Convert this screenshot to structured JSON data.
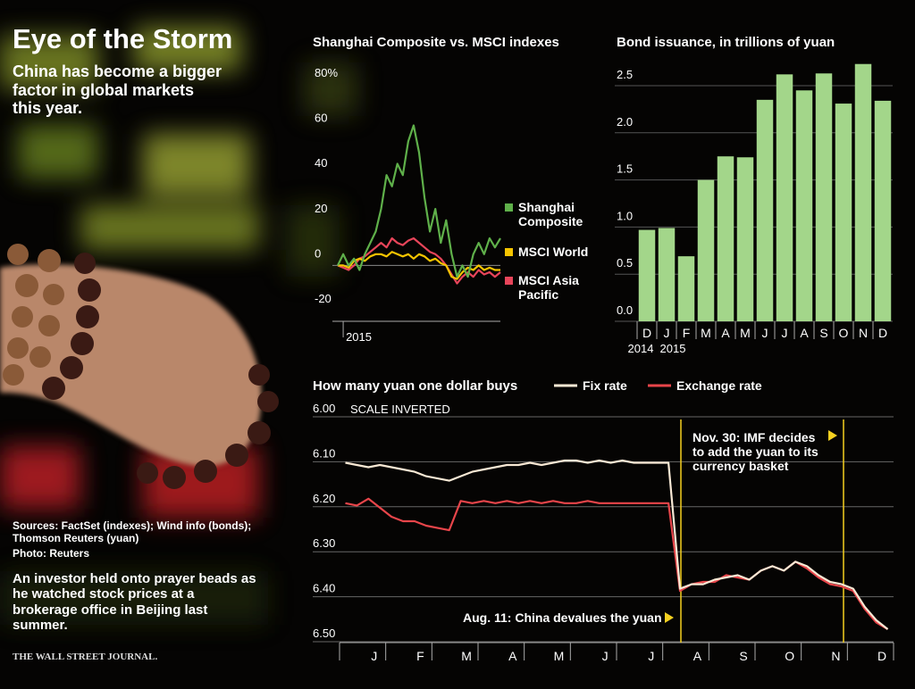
{
  "header": {
    "title": "Eye of the Storm",
    "subtitle": "China has become a bigger factor in global markets this year.",
    "sources": "Sources: FactSet (indexes); Wind info (bonds); Thomson Reuters (yuan)",
    "photo_credit": "Photo: Reuters",
    "caption": "An investor held onto prayer beads as he watched stock prices at a brokerage office in Beijing last summer.",
    "publisher": "THE WALL STREET JOURNAL."
  },
  "chart_data": [
    {
      "type": "line",
      "title": "Shanghai Composite vs. MSCI indexes",
      "categories": [
        null,
        "2015",
        null,
        null,
        null,
        null,
        null,
        null,
        null,
        null,
        null,
        null,
        null,
        null,
        null,
        null,
        null,
        null,
        null,
        null,
        null,
        null,
        null,
        null,
        null,
        null,
        null,
        null,
        null,
        null,
        null
      ],
      "series": [
        {
          "name": "Shanghai Composite",
          "color": "#5fb04a",
          "values": [
            0,
            5,
            0,
            3,
            -2,
            5,
            10,
            15,
            25,
            40,
            35,
            45,
            40,
            55,
            62,
            50,
            30,
            15,
            25,
            10,
            20,
            5,
            -5,
            0,
            -5,
            5,
            10,
            5,
            12,
            8,
            12
          ]
        },
        {
          "name": "MSCI World",
          "color": "#f5c400",
          "values": [
            0,
            0,
            -1,
            2,
            3,
            2,
            4,
            5,
            5,
            4,
            6,
            5,
            4,
            5,
            3,
            5,
            4,
            2,
            3,
            1,
            0,
            -5,
            -6,
            -3,
            -1,
            -2,
            0,
            -2,
            -1,
            -2,
            -2
          ]
        },
        {
          "name": "MSCI Asia Pacific",
          "color": "#e8455a",
          "values": [
            0,
            -1,
            -2,
            0,
            3,
            4,
            6,
            8,
            10,
            8,
            12,
            10,
            9,
            11,
            12,
            10,
            8,
            6,
            5,
            3,
            0,
            -4,
            -8,
            -5,
            -3,
            -5,
            -2,
            -4,
            -3,
            -5,
            -3
          ]
        }
      ],
      "ylim": [
        -20,
        80
      ],
      "yticks": [
        -20,
        0,
        20,
        40,
        60,
        {
          "value": 80,
          "label": "80%"
        }
      ]
    },
    {
      "type": "bar",
      "title": "Bond issuance, in trillions of yuan",
      "categories": [
        "D",
        "J",
        "F",
        "M",
        "A",
        "M",
        "J",
        "J",
        "A",
        "S",
        "O",
        "N",
        "D"
      ],
      "x_sublabels": [
        "2014",
        "2015",
        null,
        null,
        null,
        null,
        null,
        null,
        null,
        null,
        null,
        null,
        null
      ],
      "values": [
        0.97,
        0.99,
        0.69,
        1.5,
        1.75,
        1.74,
        2.35,
        2.62,
        2.45,
        2.63,
        2.31,
        2.73,
        2.34
      ],
      "color": "#a3d68a",
      "ylim": [
        0,
        2.75
      ],
      "yticks": [
        {
          "value": 0,
          "label": "0.0"
        },
        0.5,
        {
          "value": 1,
          "label": "1.0"
        },
        1.5,
        {
          "value": 2,
          "label": "2.0"
        },
        2.5
      ],
      "grid": true
    },
    {
      "type": "line",
      "title": "How many yuan one dollar buys",
      "subtitle": "SCALE INVERTED",
      "inverted": true,
      "categories": [
        null,
        "J",
        null,
        null,
        null,
        "F",
        null,
        null,
        null,
        "M",
        null,
        null,
        null,
        "A",
        null,
        null,
        null,
        "M",
        null,
        null,
        null,
        "J",
        null,
        null,
        null,
        "J",
        null,
        null,
        null,
        "A",
        null,
        null,
        null,
        "S",
        null,
        null,
        null,
        "O",
        null,
        null,
        null,
        "N",
        null,
        null,
        null,
        "D",
        null,
        null
      ],
      "series": [
        {
          "name": "Fix rate",
          "color": "#f7e8d4",
          "values": [
            6.12,
            6.125,
            6.13,
            6.125,
            6.13,
            6.135,
            6.14,
            6.15,
            6.155,
            6.16,
            6.15,
            6.14,
            6.135,
            6.13,
            6.125,
            6.125,
            6.12,
            6.125,
            6.12,
            6.115,
            6.115,
            6.12,
            6.115,
            6.12,
            6.115,
            6.12,
            6.12,
            6.12,
            6.12,
            6.4,
            6.39,
            6.39,
            6.38,
            6.375,
            6.37,
            6.38,
            6.36,
            6.35,
            6.36,
            6.34,
            6.35,
            6.37,
            6.385,
            6.39,
            6.4,
            6.44,
            6.47,
            6.49
          ]
        },
        {
          "name": "Exchange rate",
          "color": "#e8454a",
          "values": [
            6.21,
            6.215,
            6.2,
            6.22,
            6.24,
            6.25,
            6.25,
            6.26,
            6.265,
            6.27,
            6.205,
            6.21,
            6.205,
            6.21,
            6.205,
            6.21,
            6.205,
            6.21,
            6.205,
            6.21,
            6.21,
            6.205,
            6.21,
            6.21,
            6.21,
            6.21,
            6.21,
            6.21,
            6.21,
            6.405,
            6.39,
            6.385,
            6.385,
            6.37,
            6.375,
            6.38,
            6.36,
            6.35,
            6.36,
            6.34,
            6.355,
            6.375,
            6.39,
            6.395,
            6.405,
            6.445,
            6.475,
            6.49
          ]
        }
      ],
      "ylim": [
        6,
        6.5
      ],
      "yticks": [
        {
          "value": 6,
          "label": "6.00"
        },
        {
          "value": 6.1,
          "label": "6.10"
        },
        {
          "value": 6.2,
          "label": "6.20"
        },
        {
          "value": 6.3,
          "label": "6.30"
        },
        {
          "value": 6.4,
          "label": "6.40"
        },
        {
          "value": 6.5,
          "label": "6.50"
        }
      ],
      "grid": true,
      "annotations": [
        "Nov. 30: IMF decides to add the yuan to its currency basket",
        "Aug. 11: China devalues the yuan"
      ],
      "annotation_color": "#f5d020"
    }
  ]
}
